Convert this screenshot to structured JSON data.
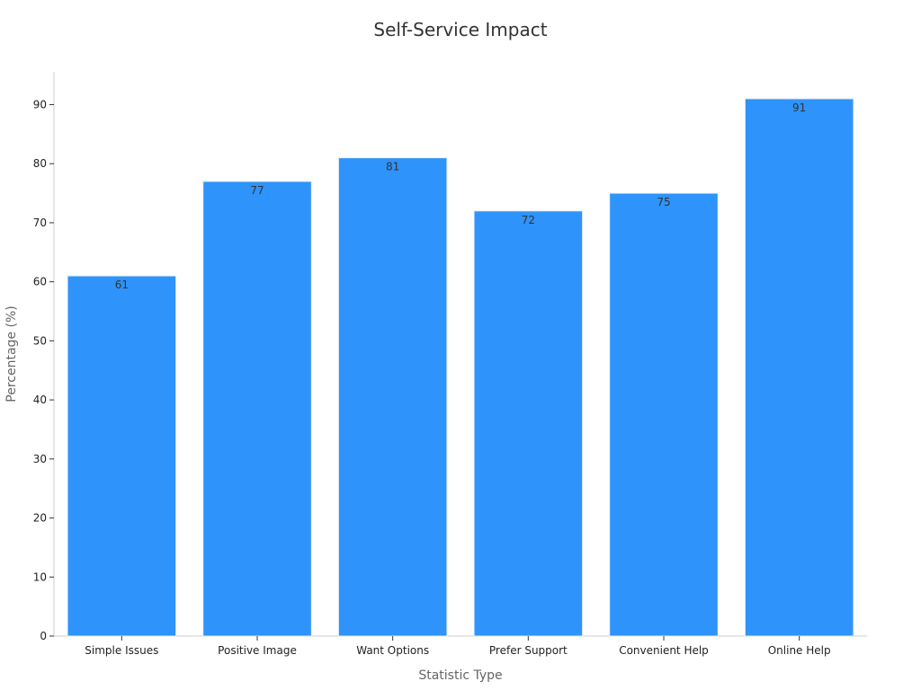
{
  "chart_data": {
    "type": "bar",
    "title": "Self-Service Impact",
    "xlabel": "Statistic Type",
    "ylabel": "Percentage (%)",
    "categories": [
      "Simple Issues",
      "Positive Image",
      "Want Options",
      "Prefer Support",
      "Convenient Help",
      "Online Help"
    ],
    "values": [
      61,
      77,
      81,
      72,
      75,
      91
    ],
    "ylim": [
      0,
      95.55
    ],
    "yticks": [
      0,
      10,
      20,
      30,
      40,
      50,
      60,
      70,
      80,
      90
    ],
    "grid": false,
    "legend": "none",
    "bar_color": "#2e93fa",
    "bar_edge_color": "#e6eef7"
  }
}
